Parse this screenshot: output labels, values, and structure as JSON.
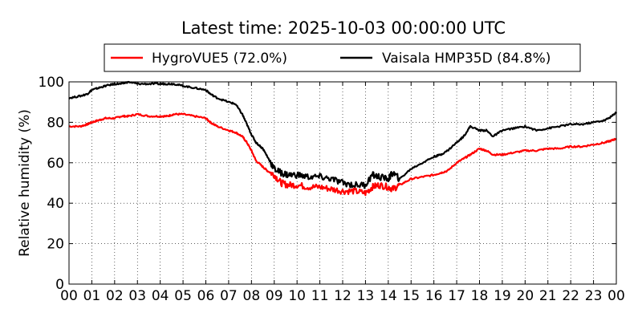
{
  "chart_data": {
    "type": "line",
    "title": "Latest time: 2025-10-03 00:00:00 UTC",
    "xlabel": "",
    "ylabel": "Relative humidity (%)",
    "ylim": [
      0,
      100
    ],
    "yticks": [
      "0",
      "20",
      "40",
      "60",
      "80",
      "100"
    ],
    "xlim": [
      0,
      24
    ],
    "xticks": [
      "00",
      "01",
      "02",
      "03",
      "04",
      "05",
      "06",
      "07",
      "08",
      "09",
      "10",
      "11",
      "12",
      "13",
      "14",
      "15",
      "16",
      "17",
      "18",
      "19",
      "20",
      "21",
      "22",
      "23",
      "00"
    ],
    "grid": true,
    "legend_position": "top-center",
    "series": [
      {
        "name": "HygroVUE5 (72.0%)",
        "color": "#ff0000",
        "x": [
          0,
          0.5,
          0.8,
          1.0,
          1.3,
          1.6,
          2.0,
          2.3,
          2.6,
          3.0,
          3.5,
          4.0,
          4.3,
          4.6,
          5.0,
          5.5,
          6.0,
          6.2,
          6.5,
          7.0,
          7.3,
          7.6,
          7.8,
          8.0,
          8.2,
          8.5,
          8.7,
          9.0,
          9.3,
          9.6,
          10.0,
          10.5,
          11.0,
          11.5,
          12.0,
          12.5,
          13.0,
          13.3,
          13.6,
          14.0,
          14.2,
          14.5,
          15.0,
          15.5,
          16.0,
          16.3,
          16.6,
          17.0,
          17.3,
          17.6,
          18.0,
          18.3,
          18.6,
          19.0,
          19.5,
          20.0,
          20.5,
          21.0,
          21.5,
          22.0,
          22.5,
          23.0,
          23.5,
          23.8,
          24.0
        ],
        "y": [
          78,
          78,
          79,
          80,
          81,
          82,
          82,
          83,
          83,
          84,
          83,
          83,
          83,
          84,
          84,
          83,
          82,
          80,
          78,
          76,
          75,
          73,
          70,
          66,
          61,
          58,
          56,
          54,
          50,
          49,
          49,
          48,
          48,
          47,
          46,
          46,
          45,
          48,
          49,
          48,
          47,
          49,
          52,
          53,
          54,
          55,
          56,
          60,
          62,
          64,
          67,
          66,
          64,
          64,
          65,
          66,
          66,
          67,
          67,
          68,
          68,
          69,
          70,
          71,
          72
        ]
      },
      {
        "name": "Vaisala HMP35D (84.8%)",
        "color": "#000000",
        "x": [
          0,
          0.5,
          0.8,
          1.0,
          1.3,
          1.6,
          2.0,
          2.3,
          2.6,
          3.0,
          3.5,
          4.0,
          4.3,
          4.6,
          5.0,
          5.5,
          6.0,
          6.2,
          6.5,
          7.0,
          7.3,
          7.6,
          7.8,
          8.0,
          8.2,
          8.5,
          8.7,
          9.0,
          9.3,
          9.6,
          10.0,
          10.5,
          11.0,
          11.5,
          12.0,
          12.5,
          13.0,
          13.3,
          13.6,
          14.0,
          14.2,
          14.5,
          15.0,
          15.5,
          16.0,
          16.3,
          16.6,
          17.0,
          17.3,
          17.6,
          18.0,
          18.3,
          18.6,
          19.0,
          19.5,
          20.0,
          20.5,
          21.0,
          21.5,
          22.0,
          22.5,
          23.0,
          23.5,
          23.8,
          24.0
        ],
        "y": [
          92,
          93,
          94,
          96,
          97,
          98,
          99,
          99,
          100,
          99,
          99,
          99,
          99,
          99,
          98,
          97,
          96,
          94,
          92,
          90,
          89,
          84,
          79,
          74,
          70,
          67,
          63,
          57,
          55,
          54,
          54,
          53,
          53,
          52,
          50,
          49,
          49,
          54,
          53,
          52,
          55,
          52,
          57,
          60,
          63,
          64,
          66,
          70,
          73,
          78,
          76,
          76,
          73,
          76,
          77,
          78,
          76,
          77,
          78,
          79,
          79,
          80,
          81,
          83,
          85
        ]
      }
    ]
  }
}
